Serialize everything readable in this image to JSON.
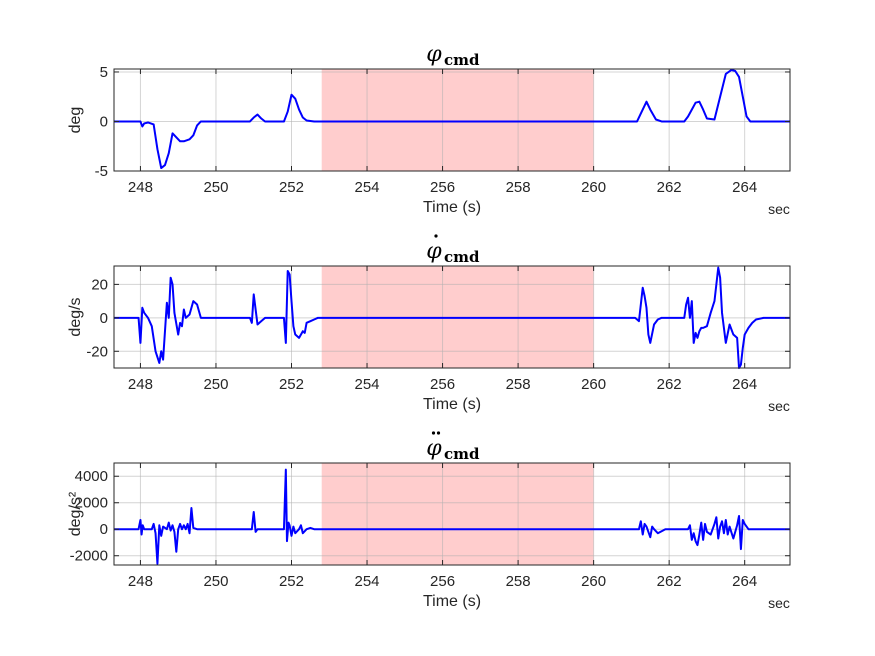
{
  "figure": {
    "background": "#ffffff",
    "line_color": "#0000ff",
    "shade_color": "#ff9b9b",
    "grid": true
  },
  "chart_data": [
    {
      "type": "line",
      "title": {
        "symbol": "φ",
        "subscript": "cmd",
        "dots": 0
      },
      "xlabel": "Time (s)",
      "xunit": "sec",
      "ylabel": "deg",
      "xlim": [
        247.3,
        265.2
      ],
      "ylim": [
        -5,
        5.3
      ],
      "xticks": [
        248,
        250,
        252,
        254,
        256,
        258,
        260,
        262,
        264
      ],
      "yticks": [
        -5,
        0,
        5
      ],
      "shaded_region": [
        252.8,
        260.0
      ],
      "series": [
        {
          "x": [
            247.3,
            248.0,
            248.05,
            248.1,
            248.2,
            248.35,
            248.45,
            248.55,
            248.65,
            248.75,
            248.85,
            248.95,
            249.05,
            249.15,
            249.3,
            249.4,
            249.5,
            249.6,
            249.75,
            250.9,
            251.0,
            251.1,
            251.2,
            251.3,
            251.8,
            251.9,
            252.0,
            252.1,
            252.2,
            252.3,
            252.4,
            252.6,
            260.0,
            261.15,
            261.3,
            261.4,
            261.5,
            261.65,
            261.8,
            262.4,
            262.5,
            262.6,
            262.7,
            262.8,
            262.9,
            263.0,
            263.2,
            263.35,
            263.5,
            263.65,
            263.75,
            263.85,
            263.95,
            264.05,
            264.15,
            265.2
          ],
          "y": [
            0,
            0,
            -0.5,
            -0.2,
            -0.1,
            -0.3,
            -2.8,
            -4.7,
            -4.4,
            -3.2,
            -1.2,
            -1.6,
            -2.0,
            -2.0,
            -1.8,
            -1.4,
            -0.4,
            0,
            0,
            0,
            0.4,
            0.7,
            0.3,
            0,
            0,
            1.0,
            2.7,
            2.3,
            1.2,
            0.4,
            0.1,
            0,
            0,
            0,
            1.2,
            2.0,
            1.2,
            0.2,
            0,
            0,
            0.5,
            1.2,
            1.9,
            2.0,
            1.2,
            0.3,
            0.2,
            2.5,
            4.8,
            5.2,
            5.1,
            4.5,
            2.5,
            0.5,
            0,
            0
          ]
        }
      ]
    },
    {
      "type": "line",
      "title": {
        "symbol": "φ",
        "subscript": "cmd",
        "dots": 1
      },
      "xlabel": "Time (s)",
      "xunit": "sec",
      "ylabel": "deg/s",
      "xlim": [
        247.3,
        265.2
      ],
      "ylim": [
        -30,
        31
      ],
      "xticks": [
        248,
        250,
        252,
        254,
        256,
        258,
        260,
        262,
        264
      ],
      "yticks": [
        -20,
        0,
        20
      ],
      "shaded_region": [
        252.8,
        260.0
      ],
      "series": [
        {
          "x": [
            247.3,
            247.95,
            248.0,
            248.05,
            248.1,
            248.2,
            248.3,
            248.4,
            248.5,
            248.55,
            248.6,
            248.65,
            248.7,
            248.75,
            248.8,
            248.85,
            248.9,
            249.0,
            249.05,
            249.1,
            249.15,
            249.2,
            249.3,
            249.4,
            249.5,
            249.6,
            250.9,
            250.95,
            251.0,
            251.05,
            251.1,
            251.2,
            251.3,
            251.4,
            251.8,
            251.85,
            251.9,
            251.95,
            252.0,
            252.05,
            252.1,
            252.2,
            252.3,
            252.35,
            252.4,
            252.5,
            252.6,
            252.7,
            253.0,
            261.1,
            261.2,
            261.3,
            261.35,
            261.4,
            261.45,
            261.5,
            261.6,
            261.7,
            261.8,
            262.0,
            262.4,
            262.45,
            262.5,
            262.55,
            262.6,
            262.65,
            262.7,
            262.75,
            262.8,
            262.85,
            262.9,
            263.0,
            263.1,
            263.2,
            263.3,
            263.35,
            263.4,
            263.5,
            263.6,
            263.7,
            263.8,
            263.85,
            263.9,
            263.95,
            264.0,
            264.1,
            264.2,
            264.3,
            264.5,
            265.2
          ],
          "y": [
            0,
            0,
            -15,
            6,
            3,
            0,
            -5,
            -20,
            -27,
            -20,
            -25,
            -8,
            9,
            0,
            24,
            20,
            3,
            -10,
            -3,
            -5,
            5,
            0,
            2,
            10,
            8,
            0,
            0,
            -3,
            14,
            5,
            -4,
            -2,
            0,
            0,
            0,
            -15,
            28,
            26,
            10,
            -5,
            -10,
            -12,
            -8,
            -9,
            -3,
            -2,
            -1,
            0,
            0,
            0,
            -2,
            18,
            13,
            6,
            -10,
            -15,
            -4,
            -1,
            0,
            0,
            0,
            8,
            12,
            0,
            10,
            -15,
            -9,
            -12,
            -8,
            -6,
            -6,
            -5,
            3,
            10,
            30,
            24,
            3,
            -15,
            -4,
            -10,
            -12,
            -30,
            -28,
            -18,
            -10,
            -6,
            -3,
            -1,
            0,
            0
          ]
        }
      ]
    },
    {
      "type": "line",
      "title": {
        "symbol": "φ",
        "subscript": "cmd",
        "dots": 2
      },
      "xlabel": "Time (s)",
      "xunit": "sec",
      "ylabel": "deg/s²",
      "xlim": [
        247.3,
        265.2
      ],
      "ylim": [
        -2700,
        5000
      ],
      "xticks": [
        248,
        250,
        252,
        254,
        256,
        258,
        260,
        262,
        264
      ],
      "yticks": [
        -2000,
        0,
        2000,
        4000
      ],
      "shaded_region": [
        252.8,
        260.0
      ],
      "series": [
        {
          "x": [
            247.3,
            247.95,
            248.0,
            248.03,
            248.06,
            248.1,
            248.3,
            248.35,
            248.4,
            248.45,
            248.5,
            248.55,
            248.6,
            248.7,
            248.75,
            248.8,
            248.85,
            248.9,
            248.95,
            249.0,
            249.05,
            249.1,
            249.15,
            249.2,
            249.25,
            249.3,
            249.35,
            249.4,
            249.5,
            249.6,
            249.8,
            250.9,
            250.95,
            251.0,
            251.05,
            251.1,
            251.3,
            251.7,
            251.8,
            251.85,
            251.88,
            251.92,
            251.95,
            252.0,
            252.05,
            252.1,
            252.2,
            252.25,
            252.3,
            252.4,
            252.5,
            252.6,
            253.0,
            261.2,
            261.25,
            261.3,
            261.35,
            261.4,
            261.5,
            261.55,
            261.6,
            261.7,
            261.9,
            262.4,
            262.5,
            262.55,
            262.6,
            262.65,
            262.7,
            262.75,
            262.8,
            262.85,
            262.9,
            262.95,
            263.0,
            263.1,
            263.2,
            263.25,
            263.3,
            263.35,
            263.4,
            263.45,
            263.5,
            263.55,
            263.6,
            263.7,
            263.8,
            263.85,
            263.9,
            263.95,
            264.0,
            264.1,
            264.3,
            265.2
          ],
          "y": [
            0,
            0,
            700,
            -400,
            300,
            0,
            0,
            400,
            -300,
            -2600,
            300,
            -500,
            200,
            0,
            500,
            -100,
            300,
            -200,
            -1700,
            0,
            400,
            0,
            300,
            0,
            400,
            -300,
            1600,
            100,
            0,
            0,
            0,
            0,
            0,
            1300,
            -200,
            0,
            0,
            0,
            0,
            4500,
            -900,
            500,
            300,
            -500,
            200,
            -300,
            0,
            300,
            -300,
            0,
            100,
            0,
            0,
            0,
            600,
            -400,
            400,
            200,
            -600,
            200,
            0,
            -300,
            0,
            0,
            0,
            300,
            -800,
            -300,
            -900,
            -1200,
            -400,
            500,
            -800,
            400,
            -200,
            -400,
            400,
            900,
            -700,
            200,
            600,
            -300,
            700,
            -400,
            200,
            -700,
            300,
            1000,
            -1500,
            700,
            400,
            0,
            0,
            0
          ]
        }
      ]
    }
  ]
}
